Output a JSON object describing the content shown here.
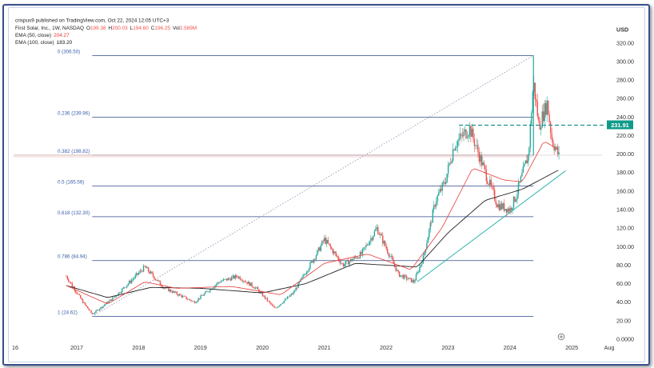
{
  "header": {
    "published": "crispus9 published on TradingView.com, Oct 22, 2024 12:05 UTC+3",
    "symbol": "First Solar, Inc., 1W, NASDAQ",
    "ohlc": [
      {
        "k": "O",
        "v": "199.38"
      },
      {
        "k": "H",
        "v": "200.03"
      },
      {
        "k": "L",
        "v": "194.60"
      },
      {
        "k": "C",
        "v": "196.25"
      },
      {
        "k": "Vol",
        "v": "2.569M"
      }
    ],
    "ema50_label": "EMA (50, close)",
    "ema50_value": "204.27",
    "ema100_label": "EMA (100, close)",
    "ema100_value": "183.20"
  },
  "currency": "USD",
  "colors": {
    "up": "#26a69a",
    "down": "#ef5350",
    "ema50": "#e53935",
    "ema100": "#222222",
    "fib": "#2f4a88",
    "fib_text": "#3b5fa8",
    "trendline": "#2bb5ad",
    "price_tag": "#0f9a8a"
  },
  "chart_data": {
    "type": "candlestick",
    "interval": "1W",
    "ylim": [
      0,
      330
    ],
    "y_ticks": [
      "320.00",
      "300.00",
      "280.00",
      "260.00",
      "240.00",
      "220.00",
      "200.00",
      "180.00",
      "160.00",
      "140.00",
      "120.00",
      "100.00",
      "80.00",
      "60.00",
      "40.00",
      "20.00",
      "0.0000"
    ],
    "x_ticks": [
      "16",
      "2017",
      "2018",
      "2019",
      "2020",
      "2021",
      "2022",
      "2023",
      "2024",
      "2025",
      "Aug"
    ],
    "fib_levels": [
      {
        "label": "0 (306.50)",
        "value": 306.5
      },
      {
        "label": "0.236 (239.96)",
        "value": 239.96
      },
      {
        "label": "0.382 (198.82)",
        "value": 198.82
      },
      {
        "label": "0.5 (165.56)",
        "value": 165.56
      },
      {
        "label": "0.618 (132.30)",
        "value": 132.3
      },
      {
        "label": "0.786 (84.94)",
        "value": 84.94
      },
      {
        "label": "1 (24.62)",
        "value": 24.62
      }
    ],
    "resistance": {
      "value": 231.91,
      "label": "231.91"
    },
    "last_close": 196.25,
    "price_path": [
      {
        "t": 2016.83,
        "c": 68
      },
      {
        "t": 2017.1,
        "c": 40
      },
      {
        "t": 2017.25,
        "c": 27
      },
      {
        "t": 2017.6,
        "c": 45
      },
      {
        "t": 2017.95,
        "c": 68
      },
      {
        "t": 2018.1,
        "c": 78
      },
      {
        "t": 2018.4,
        "c": 56
      },
      {
        "t": 2018.9,
        "c": 40
      },
      {
        "t": 2019.3,
        "c": 62
      },
      {
        "t": 2019.6,
        "c": 68
      },
      {
        "t": 2019.9,
        "c": 55
      },
      {
        "t": 2020.2,
        "c": 33
      },
      {
        "t": 2020.5,
        "c": 50
      },
      {
        "t": 2020.9,
        "c": 95
      },
      {
        "t": 2021.0,
        "c": 108
      },
      {
        "t": 2021.3,
        "c": 80
      },
      {
        "t": 2021.6,
        "c": 92
      },
      {
        "t": 2021.85,
        "c": 120
      },
      {
        "t": 2022.2,
        "c": 70
      },
      {
        "t": 2022.45,
        "c": 62
      },
      {
        "t": 2022.6,
        "c": 88
      },
      {
        "t": 2022.8,
        "c": 150
      },
      {
        "t": 2022.95,
        "c": 170
      },
      {
        "t": 2023.1,
        "c": 210
      },
      {
        "t": 2023.35,
        "c": 228
      },
      {
        "t": 2023.6,
        "c": 180
      },
      {
        "t": 2023.8,
        "c": 145
      },
      {
        "t": 2024.0,
        "c": 140
      },
      {
        "t": 2024.1,
        "c": 155
      },
      {
        "t": 2024.3,
        "c": 200
      },
      {
        "t": 2024.38,
        "c": 278
      },
      {
        "t": 2024.47,
        "c": 230
      },
      {
        "t": 2024.6,
        "c": 255
      },
      {
        "t": 2024.68,
        "c": 215
      },
      {
        "t": 2024.8,
        "c": 196.25
      }
    ],
    "ema50_path": [
      {
        "t": 2016.83,
        "v": 58
      },
      {
        "t": 2017.5,
        "v": 38
      },
      {
        "t": 2018.1,
        "v": 62
      },
      {
        "t": 2018.6,
        "v": 55
      },
      {
        "t": 2019.5,
        "v": 57
      },
      {
        "t": 2020.3,
        "v": 48
      },
      {
        "t": 2021.0,
        "v": 82
      },
      {
        "t": 2021.7,
        "v": 92
      },
      {
        "t": 2022.4,
        "v": 75
      },
      {
        "t": 2022.9,
        "v": 120
      },
      {
        "t": 2023.4,
        "v": 185
      },
      {
        "t": 2023.9,
        "v": 172
      },
      {
        "t": 2024.2,
        "v": 170
      },
      {
        "t": 2024.55,
        "v": 214
      },
      {
        "t": 2024.8,
        "v": 204.27
      }
    ],
    "ema100_path": [
      {
        "t": 2016.83,
        "v": 58
      },
      {
        "t": 2017.5,
        "v": 45
      },
      {
        "t": 2018.2,
        "v": 56
      },
      {
        "t": 2019.0,
        "v": 55
      },
      {
        "t": 2020.0,
        "v": 50
      },
      {
        "t": 2020.7,
        "v": 60
      },
      {
        "t": 2021.5,
        "v": 82
      },
      {
        "t": 2022.5,
        "v": 78
      },
      {
        "t": 2023.0,
        "v": 115
      },
      {
        "t": 2023.6,
        "v": 150
      },
      {
        "t": 2024.2,
        "v": 162
      },
      {
        "t": 2024.8,
        "v": 183.2
      }
    ],
    "trendlines": [
      {
        "kind": "dotted",
        "from": {
          "t": 2017.25,
          "v": 24.62
        },
        "to": {
          "t": 2024.38,
          "v": 306.5
        }
      },
      {
        "kind": "support",
        "from": {
          "t": 2022.5,
          "v": 62
        },
        "to": {
          "t": 2024.9,
          "v": 182
        }
      }
    ]
  }
}
